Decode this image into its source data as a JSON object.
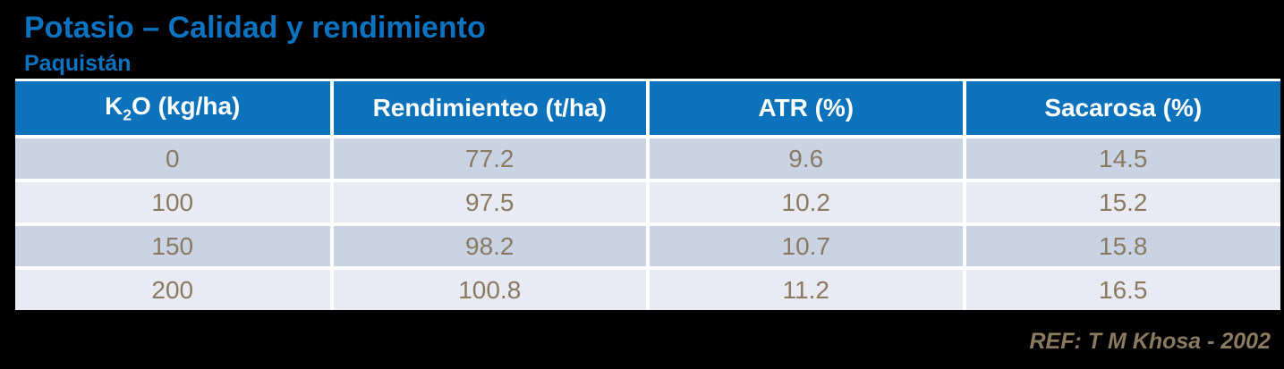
{
  "header": {
    "title": "Potasio – Calidad y rendimiento",
    "subtitle": "Paquistán"
  },
  "table": {
    "columns": [
      {
        "base": "K",
        "sub": "2",
        "rest": "O (kg/ha)"
      },
      {
        "label": "Rendimienteo (t/ha)"
      },
      {
        "label": "ATR (%)"
      },
      {
        "label": "Sacarosa (%)"
      }
    ],
    "rows": [
      [
        "0",
        "77.2",
        "9.6",
        "14.5"
      ],
      [
        "100",
        "97.5",
        "10.2",
        "15.2"
      ],
      [
        "150",
        "98.2",
        "10.7",
        "15.8"
      ],
      [
        "200",
        "100.8",
        "11.2",
        "16.5"
      ]
    ]
  },
  "footer": {
    "reference": "REF: T M Khosa - 2002"
  },
  "colors": {
    "background": "#000000",
    "accent_blue": "#0B73C0",
    "header_fill": "#0C72BC",
    "header_text": "#FFFFFF",
    "row_band_dark": "#CAD3E3",
    "row_band_light": "#E9EBF4",
    "cell_text": "#8A7A62",
    "reference_text": "#8A7A60",
    "grid_separator": "#FFFFFF"
  },
  "chart_data": {
    "type": "table",
    "title": "Potasio – Calidad y rendimiento",
    "subtitle": "Paquistán",
    "columns": [
      "K2O (kg/ha)",
      "Rendimienteo (t/ha)",
      "ATR (%)",
      "Sacarosa (%)"
    ],
    "rows": [
      [
        0,
        77.2,
        9.6,
        14.5
      ],
      [
        100,
        97.5,
        10.2,
        15.2
      ],
      [
        150,
        98.2,
        10.7,
        15.8
      ],
      [
        200,
        100.8,
        11.2,
        16.5
      ]
    ],
    "reference": "REF: T M Khosa - 2002"
  }
}
